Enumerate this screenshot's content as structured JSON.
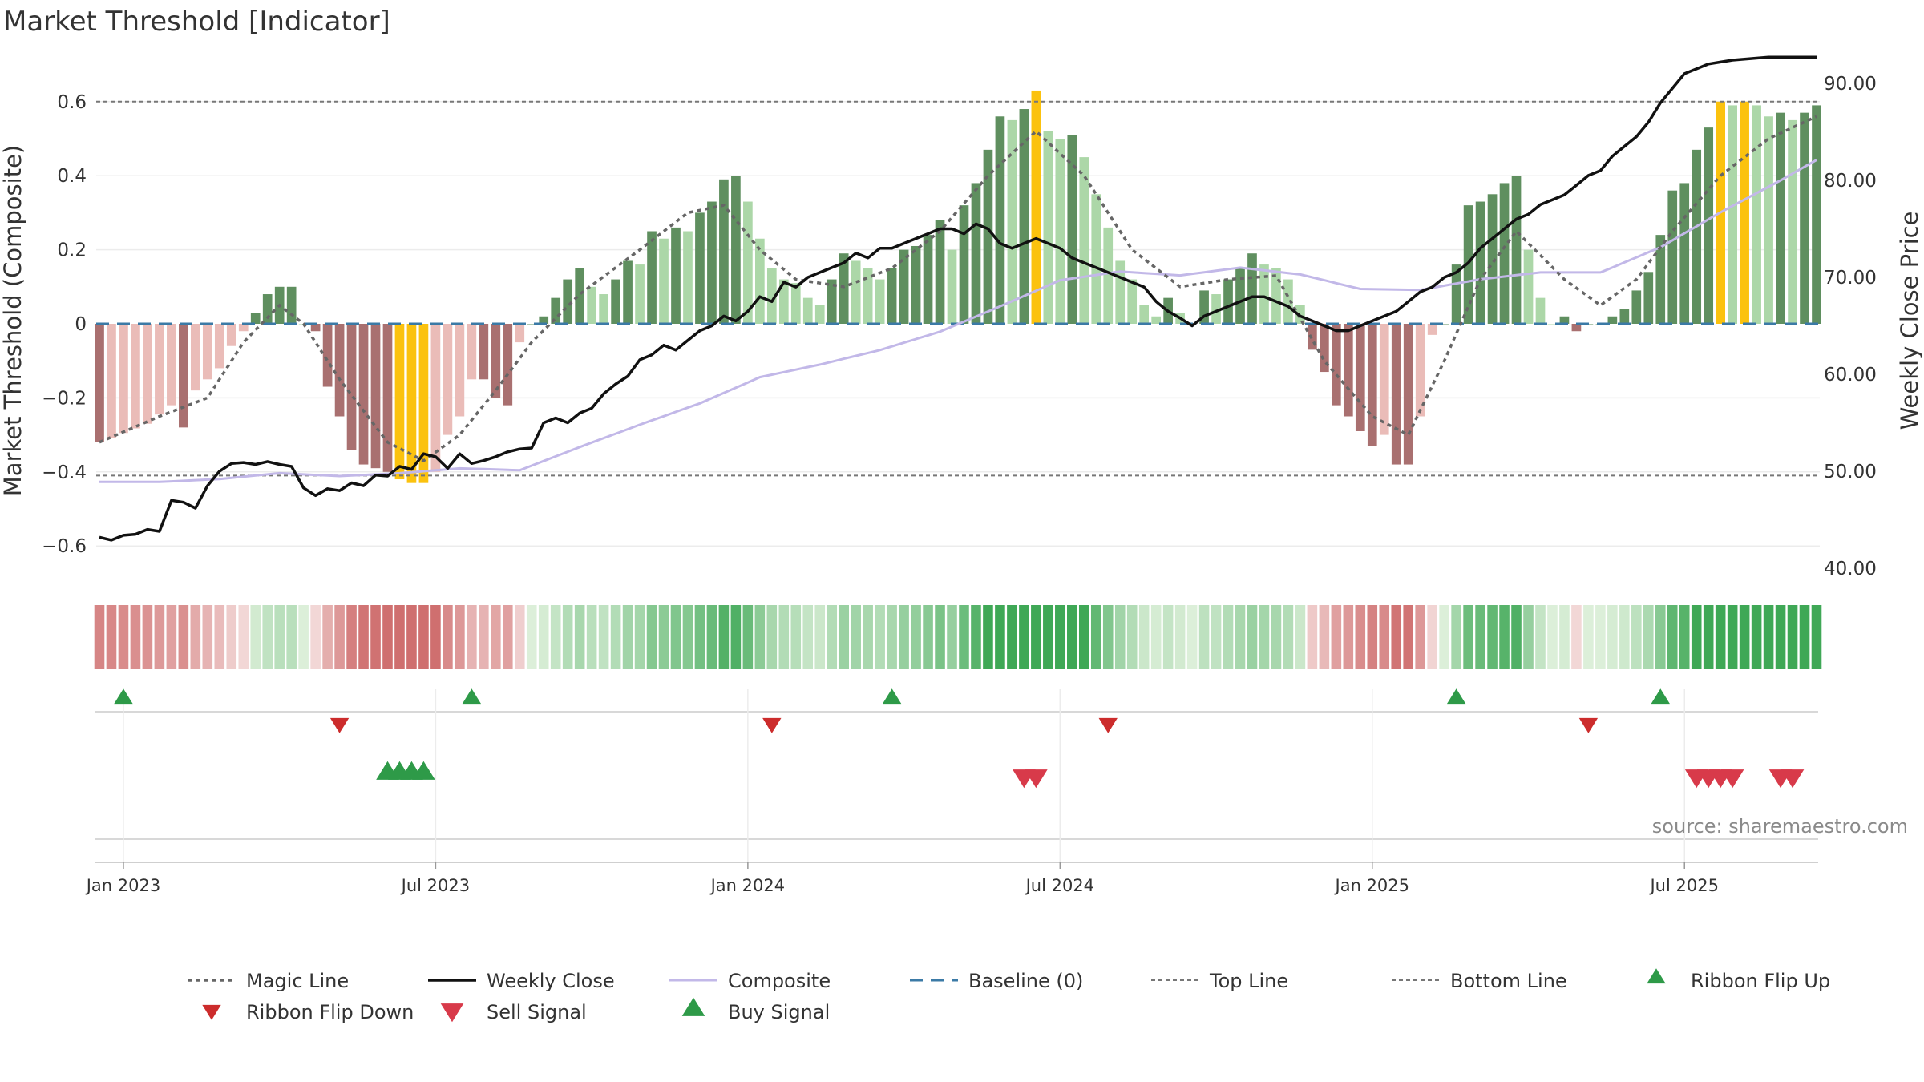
{
  "title": "Market Threshold [Indicator]",
  "source": "source: sharemaestro.com",
  "colors": {
    "hist_green_dark": "#5f8f5f",
    "hist_green_light": "#acd7a8",
    "hist_red_dark": "#a97070",
    "hist_red_light": "#eabcb8",
    "hist_yellow": "#fbc20e",
    "weekly_close": "#111111",
    "composite": "#c2b8e8",
    "magic": "#666666",
    "baseline": "#3b7aa6",
    "threshold": "#777777",
    "buy": "#2e9a48",
    "sell": "#d83a4a",
    "flip_down": "#cc2c2c"
  },
  "chart_data": {
    "type": "bar",
    "title": "Market Threshold [Indicator]",
    "ylabel": "Market Threshold (Composite)",
    "y2label": "Weekly Close Price",
    "ylim": [
      -0.7,
      0.7
    ],
    "y2lim": [
      38.1,
      92.7
    ],
    "y_ticks": [
      0.6,
      0.4,
      0.2,
      0,
      -0.2,
      -0.4,
      -0.6
    ],
    "y_tick_labels": [
      "0.6",
      "0.4",
      "0.2",
      "0",
      "−0.2",
      "−0.4",
      "−0.6"
    ],
    "y2_ticks": [
      90,
      80,
      70,
      60,
      50,
      40
    ],
    "y2_tick_labels": [
      "90.00",
      "80.00",
      "70.00",
      "60.00",
      "50.00",
      "40.00"
    ],
    "x_tick_labels": [
      "Jan 2023",
      "Jul 2023",
      "Jan 2024",
      "Jul 2024",
      "Jan 2025",
      "Jul 2025"
    ],
    "x_tick_weeks": [
      2,
      28,
      54,
      80,
      106,
      132
    ],
    "top_line": 0.6,
    "bottom_line": -0.41,
    "grid": true,
    "legend_position": "bottom",
    "legend": [
      "Magic Line",
      "Weekly Close",
      "Composite",
      "Baseline (0)",
      "Top Line",
      "Bottom Line",
      "Ribbon Flip Up",
      "Ribbon Flip Down",
      "Sell Signal",
      "Buy Signal"
    ],
    "composite_keys": [
      [
        0,
        -0.32
      ],
      [
        4,
        -0.27
      ],
      [
        6,
        -0.22
      ],
      [
        7,
        -0.28
      ],
      [
        8,
        -0.18
      ],
      [
        9,
        -0.15
      ],
      [
        10,
        -0.12
      ],
      [
        11,
        -0.06
      ],
      [
        12,
        -0.02
      ],
      [
        13,
        0.03
      ],
      [
        14,
        0.08
      ],
      [
        15,
        0.1
      ],
      [
        16,
        0.1
      ],
      [
        17,
        0.0
      ],
      [
        18,
        -0.02
      ],
      [
        19,
        -0.17
      ],
      [
        20,
        -0.25
      ],
      [
        21,
        -0.34
      ],
      [
        22,
        -0.38
      ],
      [
        23,
        -0.39
      ],
      [
        24,
        -0.4
      ],
      [
        25,
        -0.42
      ],
      [
        26,
        -0.43
      ],
      [
        27,
        -0.43
      ],
      [
        28,
        -0.4
      ],
      [
        29,
        -0.3
      ],
      [
        30,
        -0.25
      ],
      [
        31,
        -0.15
      ],
      [
        32,
        -0.15
      ],
      [
        33,
        -0.2
      ],
      [
        34,
        -0.22
      ],
      [
        35,
        -0.05
      ],
      [
        36,
        0.0
      ],
      [
        37,
        0.02
      ],
      [
        38,
        0.07
      ],
      [
        39,
        0.12
      ],
      [
        40,
        0.15
      ],
      [
        41,
        0.1
      ],
      [
        42,
        0.08
      ],
      [
        43,
        0.12
      ],
      [
        44,
        0.17
      ],
      [
        45,
        0.16
      ],
      [
        46,
        0.25
      ],
      [
        47,
        0.23
      ],
      [
        48,
        0.26
      ],
      [
        49,
        0.25
      ],
      [
        50,
        0.3
      ],
      [
        51,
        0.33
      ],
      [
        52,
        0.39
      ],
      [
        53,
        0.4
      ],
      [
        54,
        0.33
      ],
      [
        55,
        0.23
      ],
      [
        56,
        0.15
      ],
      [
        57,
        0.12
      ],
      [
        58,
        0.11
      ],
      [
        59,
        0.07
      ],
      [
        60,
        0.05
      ],
      [
        61,
        0.12
      ],
      [
        62,
        0.19
      ],
      [
        63,
        0.17
      ],
      [
        64,
        0.15
      ],
      [
        65,
        0.12
      ],
      [
        66,
        0.15
      ],
      [
        67,
        0.2
      ],
      [
        68,
        0.21
      ],
      [
        69,
        0.24
      ],
      [
        70,
        0.28
      ],
      [
        71,
        0.2
      ],
      [
        72,
        0.32
      ],
      [
        73,
        0.38
      ],
      [
        74,
        0.47
      ],
      [
        75,
        0.56
      ],
      [
        76,
        0.55
      ],
      [
        77,
        0.58
      ],
      [
        78,
        0.63
      ],
      [
        79,
        0.52
      ],
      [
        80,
        0.5
      ],
      [
        81,
        0.51
      ],
      [
        82,
        0.45
      ],
      [
        83,
        0.35
      ],
      [
        84,
        0.26
      ],
      [
        85,
        0.17
      ],
      [
        86,
        0.12
      ],
      [
        87,
        0.05
      ],
      [
        88,
        0.02
      ],
      [
        89,
        0.07
      ],
      [
        90,
        0.03
      ],
      [
        91,
        0.0
      ],
      [
        92,
        0.09
      ],
      [
        93,
        0.08
      ],
      [
        94,
        0.12
      ],
      [
        95,
        0.15
      ],
      [
        96,
        0.19
      ],
      [
        97,
        0.16
      ],
      [
        98,
        0.15
      ],
      [
        99,
        0.12
      ],
      [
        100,
        0.05
      ],
      [
        101,
        -0.07
      ],
      [
        102,
        -0.13
      ],
      [
        103,
        -0.22
      ],
      [
        104,
        -0.25
      ],
      [
        105,
        -0.29
      ],
      [
        106,
        -0.33
      ],
      [
        107,
        -0.3
      ],
      [
        108,
        -0.38
      ],
      [
        109,
        -0.38
      ],
      [
        110,
        -0.25
      ],
      [
        111,
        -0.03
      ],
      [
        112,
        0.0
      ],
      [
        113,
        0.16
      ],
      [
        114,
        0.32
      ],
      [
        115,
        0.33
      ],
      [
        116,
        0.35
      ],
      [
        117,
        0.38
      ],
      [
        118,
        0.4
      ],
      [
        119,
        0.2
      ],
      [
        120,
        0.07
      ],
      [
        121,
        0.0
      ],
      [
        122,
        0.02
      ],
      [
        123,
        -0.02
      ],
      [
        124,
        0.0
      ],
      [
        125,
        0.0
      ],
      [
        126,
        0.02
      ],
      [
        127,
        0.04
      ],
      [
        128,
        0.09
      ],
      [
        129,
        0.14
      ],
      [
        130,
        0.24
      ],
      [
        131,
        0.36
      ],
      [
        132,
        0.38
      ],
      [
        133,
        0.47
      ],
      [
        134,
        0.53
      ],
      [
        135,
        0.6
      ],
      [
        136,
        0.59
      ],
      [
        137,
        0.6
      ],
      [
        138,
        0.59
      ],
      [
        139,
        0.56
      ],
      [
        140,
        0.57
      ],
      [
        141,
        0.55
      ],
      [
        142,
        0.57
      ],
      [
        143,
        0.59
      ]
    ],
    "weekly_close_keys": [
      [
        0,
        43.2
      ],
      [
        1,
        42.9
      ],
      [
        2,
        43.4
      ],
      [
        3,
        43.5
      ],
      [
        4,
        44.0
      ],
      [
        5,
        43.8
      ],
      [
        6,
        47.0
      ],
      [
        7,
        46.8
      ],
      [
        8,
        46.2
      ],
      [
        9,
        48.5
      ],
      [
        10,
        50.0
      ],
      [
        11,
        50.8
      ],
      [
        12,
        50.9
      ],
      [
        13,
        50.7
      ],
      [
        14,
        51.0
      ],
      [
        15,
        50.7
      ],
      [
        16,
        50.5
      ],
      [
        17,
        48.3
      ],
      [
        18,
        47.5
      ],
      [
        19,
        48.2
      ],
      [
        20,
        48.0
      ],
      [
        21,
        48.8
      ],
      [
        22,
        48.5
      ],
      [
        23,
        49.6
      ],
      [
        24,
        49.5
      ],
      [
        25,
        50.5
      ],
      [
        26,
        50.2
      ],
      [
        27,
        51.8
      ],
      [
        28,
        51.5
      ],
      [
        29,
        50.3
      ],
      [
        30,
        51.8
      ],
      [
        31,
        50.8
      ],
      [
        32,
        51.1
      ],
      [
        33,
        51.5
      ],
      [
        34,
        52.0
      ],
      [
        35,
        52.3
      ],
      [
        36,
        52.4
      ],
      [
        37,
        55.0
      ],
      [
        38,
        55.5
      ],
      [
        39,
        55.0
      ],
      [
        40,
        56.0
      ],
      [
        41,
        56.5
      ],
      [
        42,
        58.0
      ],
      [
        43,
        59.0
      ],
      [
        44,
        59.8
      ],
      [
        45,
        61.5
      ],
      [
        46,
        62.0
      ],
      [
        47,
        63.0
      ],
      [
        48,
        62.5
      ],
      [
        49,
        63.5
      ],
      [
        50,
        64.5
      ],
      [
        51,
        65.0
      ],
      [
        52,
        66.0
      ],
      [
        53,
        65.5
      ],
      [
        54,
        66.5
      ],
      [
        55,
        68.0
      ],
      [
        56,
        67.5
      ],
      [
        57,
        69.5
      ],
      [
        58,
        69.0
      ],
      [
        59,
        70.0
      ],
      [
        60,
        70.5
      ],
      [
        61,
        71.0
      ],
      [
        62,
        71.5
      ],
      [
        63,
        72.5
      ],
      [
        64,
        72.0
      ],
      [
        65,
        73.0
      ],
      [
        66,
        73.0
      ],
      [
        67,
        73.5
      ],
      [
        68,
        74.0
      ],
      [
        69,
        74.5
      ],
      [
        70,
        75.0
      ],
      [
        71,
        75.0
      ],
      [
        72,
        74.5
      ],
      [
        73,
        75.5
      ],
      [
        74,
        75.0
      ],
      [
        75,
        73.5
      ],
      [
        76,
        73.0
      ],
      [
        77,
        73.5
      ],
      [
        78,
        74.0
      ],
      [
        79,
        73.5
      ],
      [
        80,
        73.0
      ],
      [
        81,
        72.0
      ],
      [
        82,
        71.5
      ],
      [
        83,
        71.0
      ],
      [
        84,
        70.5
      ],
      [
        85,
        70.0
      ],
      [
        86,
        69.5
      ],
      [
        87,
        69.0
      ],
      [
        88,
        67.5
      ],
      [
        89,
        66.5
      ],
      [
        90,
        65.8
      ],
      [
        91,
        65.0
      ],
      [
        92,
        66.0
      ],
      [
        93,
        66.5
      ],
      [
        94,
        67.0
      ],
      [
        95,
        67.5
      ],
      [
        96,
        68.0
      ],
      [
        97,
        68.0
      ],
      [
        98,
        67.5
      ],
      [
        99,
        67.0
      ],
      [
        100,
        66.0
      ],
      [
        101,
        65.5
      ],
      [
        102,
        65.0
      ],
      [
        103,
        64.5
      ],
      [
        104,
        64.5
      ],
      [
        105,
        65.0
      ],
      [
        106,
        65.5
      ],
      [
        107,
        66.0
      ],
      [
        108,
        66.5
      ],
      [
        109,
        67.5
      ],
      [
        110,
        68.5
      ],
      [
        111,
        69.0
      ],
      [
        112,
        70.0
      ],
      [
        113,
        70.5
      ],
      [
        114,
        71.5
      ],
      [
        115,
        73.0
      ],
      [
        116,
        74.0
      ],
      [
        117,
        75.0
      ],
      [
        118,
        76.0
      ],
      [
        119,
        76.5
      ],
      [
        120,
        77.5
      ],
      [
        121,
        78.0
      ],
      [
        122,
        78.5
      ],
      [
        123,
        79.5
      ],
      [
        124,
        80.5
      ],
      [
        125,
        81.0
      ],
      [
        126,
        82.5
      ],
      [
        127,
        83.5
      ],
      [
        128,
        84.5
      ],
      [
        129,
        86.0
      ],
      [
        130,
        88.0
      ],
      [
        131,
        89.5
      ],
      [
        132,
        91.0
      ],
      [
        133,
        91.5
      ],
      [
        134,
        92.0
      ],
      [
        135,
        92.2
      ],
      [
        136,
        92.4
      ],
      [
        137,
        92.5
      ],
      [
        138,
        92.6
      ],
      [
        139,
        92.7
      ],
      [
        140,
        92.7
      ],
      [
        141,
        92.7
      ],
      [
        142,
        92.7
      ],
      [
        143,
        92.7
      ]
    ],
    "composite_line_keys": [
      [
        0,
        48.9
      ],
      [
        5,
        48.9
      ],
      [
        10,
        49.2
      ],
      [
        15,
        49.8
      ],
      [
        20,
        49.5
      ],
      [
        25,
        49.8
      ],
      [
        30,
        50.3
      ],
      [
        35,
        50.1
      ],
      [
        40,
        52.5
      ],
      [
        45,
        54.8
      ],
      [
        50,
        57.0
      ],
      [
        55,
        59.7
      ],
      [
        60,
        61.0
      ],
      [
        65,
        62.5
      ],
      [
        70,
        64.4
      ],
      [
        75,
        67.0
      ],
      [
        80,
        69.7
      ],
      [
        85,
        70.6
      ],
      [
        90,
        70.2
      ],
      [
        95,
        71.0
      ],
      [
        100,
        70.3
      ],
      [
        105,
        68.8
      ],
      [
        110,
        68.7
      ],
      [
        115,
        69.8
      ],
      [
        120,
        70.5
      ],
      [
        125,
        70.5
      ],
      [
        130,
        73.1
      ],
      [
        135,
        76.7
      ],
      [
        140,
        80.0
      ],
      [
        143,
        82.1
      ]
    ],
    "magic_keys": [
      [
        0,
        -0.32
      ],
      [
        5,
        -0.25
      ],
      [
        9,
        -0.2
      ],
      [
        12,
        -0.05
      ],
      [
        15,
        0.05
      ],
      [
        17,
        0.0
      ],
      [
        20,
        -0.15
      ],
      [
        24,
        -0.32
      ],
      [
        27,
        -0.37
      ],
      [
        30,
        -0.3
      ],
      [
        33,
        -0.18
      ],
      [
        36,
        -0.05
      ],
      [
        40,
        0.08
      ],
      [
        45,
        0.2
      ],
      [
        49,
        0.3
      ],
      [
        52,
        0.32
      ],
      [
        55,
        0.2
      ],
      [
        58,
        0.12
      ],
      [
        62,
        0.1
      ],
      [
        66,
        0.15
      ],
      [
        70,
        0.25
      ],
      [
        74,
        0.4
      ],
      [
        78,
        0.52
      ],
      [
        82,
        0.4
      ],
      [
        86,
        0.2
      ],
      [
        90,
        0.1
      ],
      [
        94,
        0.12
      ],
      [
        98,
        0.13
      ],
      [
        102,
        -0.1
      ],
      [
        106,
        -0.25
      ],
      [
        109,
        -0.3
      ],
      [
        112,
        -0.1
      ],
      [
        115,
        0.12
      ],
      [
        118,
        0.25
      ],
      [
        122,
        0.12
      ],
      [
        125,
        0.05
      ],
      [
        128,
        0.12
      ],
      [
        131,
        0.25
      ],
      [
        135,
        0.4
      ],
      [
        139,
        0.5
      ],
      [
        143,
        0.56
      ]
    ],
    "signals": {
      "ribbon_flip_up": [
        2,
        31,
        66,
        113,
        130
      ],
      "ribbon_flip_down": [
        20,
        56,
        84,
        124
      ],
      "buy_signal": [
        24,
        25,
        26,
        27
      ],
      "sell_signal": [
        77,
        78,
        133,
        134,
        135,
        136,
        140,
        141
      ]
    }
  },
  "legend_items": [
    {
      "key": "magic",
      "label": "Magic Line"
    },
    {
      "key": "close",
      "label": "Weekly Close"
    },
    {
      "key": "composite",
      "label": "Composite"
    },
    {
      "key": "baseline",
      "label": "Baseline (0)"
    },
    {
      "key": "top",
      "label": "Top Line"
    },
    {
      "key": "bottom",
      "label": "Bottom Line"
    },
    {
      "key": "flipup",
      "label": "Ribbon Flip Up"
    },
    {
      "key": "flipdown",
      "label": "Ribbon Flip Down"
    },
    {
      "key": "sell",
      "label": "Sell Signal"
    },
    {
      "key": "buy",
      "label": "Buy Signal"
    }
  ]
}
